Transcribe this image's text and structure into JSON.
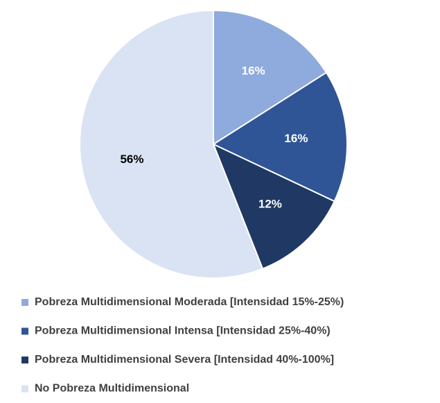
{
  "chart_data": {
    "type": "pie",
    "categories": [
      "Pobreza Multidimensional Moderada [Intensidad 15%-25%)",
      "Pobreza Multidimensional Intensa [Intensidad 25%-40%)",
      "Pobreza Multidimensional Severa [Intensidad 40%-100%]",
      "No Pobreza Multidimensional"
    ],
    "values": [
      16,
      16,
      12,
      56
    ],
    "value_labels": [
      "16%",
      "16%",
      "12%",
      "56%"
    ],
    "colors": [
      "#8faadc",
      "#2f5597",
      "#1f3864",
      "#dae3f3"
    ],
    "legend": "bottom"
  }
}
